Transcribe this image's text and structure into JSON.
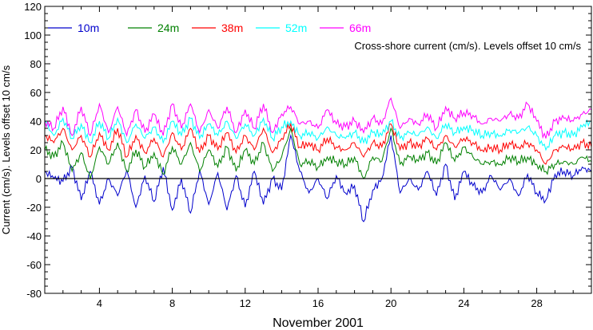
{
  "chart_data": {
    "type": "line",
    "title": "",
    "annotation": "Cross-shore current (cm/s). Levels offset 10 cm/s",
    "xlabel": "November 2001",
    "ylabel": "Current (cm/s). Levels offset 10 cm/s",
    "xlim": [
      1,
      31
    ],
    "ylim": [
      -80,
      120
    ],
    "xticks": [
      4,
      8,
      12,
      16,
      20,
      24,
      28
    ],
    "yticks": [
      -80,
      -60,
      -40,
      -20,
      0,
      20,
      40,
      60,
      80,
      100,
      120
    ],
    "zero_line": true,
    "grid": false,
    "legend_position": "top-left, horizontal",
    "x": [
      1.0,
      1.5,
      2.0,
      2.5,
      3.0,
      3.5,
      4.0,
      4.5,
      5.0,
      5.5,
      6.0,
      6.5,
      7.0,
      7.5,
      8.0,
      8.5,
      9.0,
      9.5,
      10.0,
      10.5,
      11.0,
      11.5,
      12.0,
      12.5,
      13.0,
      13.5,
      14.0,
      14.5,
      15.0,
      15.5,
      16.0,
      16.5,
      17.0,
      17.5,
      18.0,
      18.5,
      19.0,
      19.5,
      20.0,
      20.5,
      21.0,
      21.5,
      22.0,
      22.5,
      23.0,
      23.5,
      24.0,
      24.5,
      25.0,
      25.5,
      26.0,
      26.5,
      27.0,
      27.5,
      28.0,
      28.5,
      29.0,
      29.5,
      30.0,
      30.5,
      31.0
    ],
    "series": [
      {
        "name": "10m",
        "color": "#0000cc",
        "values": [
          5,
          0,
          -2,
          8,
          -15,
          5,
          -18,
          0,
          -12,
          6,
          -20,
          2,
          -16,
          8,
          -22,
          0,
          -24,
          6,
          -18,
          4,
          -22,
          2,
          -20,
          5,
          -18,
          0,
          -8,
          30,
          5,
          -10,
          0,
          -14,
          2,
          -10,
          -5,
          -30,
          -8,
          0,
          30,
          -10,
          0,
          -8,
          5,
          -12,
          10,
          -15,
          5,
          -5,
          -10,
          2,
          -8,
          0,
          -12,
          3,
          -10,
          -15,
          3,
          5,
          2,
          8,
          5
        ]
      },
      {
        "name": "24m",
        "color": "#008000",
        "values": [
          20,
          15,
          25,
          5,
          18,
          0,
          22,
          10,
          25,
          5,
          20,
          8,
          18,
          3,
          22,
          10,
          25,
          5,
          20,
          8,
          22,
          5,
          20,
          10,
          25,
          5,
          15,
          35,
          10,
          12,
          8,
          15,
          12,
          10,
          15,
          0,
          15,
          12,
          35,
          10,
          15,
          12,
          18,
          10,
          25,
          12,
          22,
          15,
          10,
          12,
          10,
          15,
          12,
          15,
          10,
          5,
          10,
          12,
          10,
          15,
          12
        ]
      },
      {
        "name": "38m",
        "color": "#ff0000",
        "values": [
          30,
          25,
          35,
          20,
          30,
          15,
          32,
          20,
          35,
          15,
          30,
          18,
          28,
          15,
          32,
          20,
          35,
          18,
          30,
          20,
          32,
          18,
          30,
          20,
          35,
          18,
          28,
          38,
          22,
          25,
          20,
          28,
          22,
          20,
          25,
          15,
          25,
          22,
          38,
          20,
          25,
          22,
          28,
          20,
          30,
          22,
          28,
          25,
          20,
          22,
          20,
          25,
          22,
          25,
          20,
          10,
          20,
          22,
          20,
          25,
          22
        ]
      },
      {
        "name": "52m",
        "color": "#00ffff",
        "values": [
          40,
          30,
          42,
          28,
          38,
          25,
          40,
          28,
          42,
          25,
          38,
          28,
          36,
          25,
          40,
          30,
          42,
          28,
          38,
          30,
          40,
          28,
          38,
          30,
          42,
          28,
          36,
          40,
          30,
          32,
          28,
          36,
          30,
          28,
          32,
          25,
          32,
          30,
          40,
          28,
          32,
          30,
          36,
          28,
          38,
          32,
          36,
          34,
          30,
          32,
          30,
          34,
          32,
          36,
          30,
          20,
          30,
          32,
          30,
          36,
          40
        ]
      },
      {
        "name": "66m",
        "color": "#ff00ff",
        "values": [
          40,
          35,
          50,
          30,
          50,
          30,
          52,
          32,
          50,
          30,
          48,
          32,
          45,
          30,
          52,
          35,
          52,
          32,
          48,
          35,
          50,
          32,
          48,
          35,
          52,
          32,
          45,
          50,
          38,
          40,
          35,
          48,
          38,
          36,
          40,
          32,
          42,
          38,
          56,
          35,
          42,
          38,
          45,
          35,
          50,
          42,
          46,
          44,
          38,
          42,
          40,
          45,
          42,
          52,
          40,
          28,
          40,
          42,
          40,
          45,
          48
        ]
      }
    ]
  }
}
